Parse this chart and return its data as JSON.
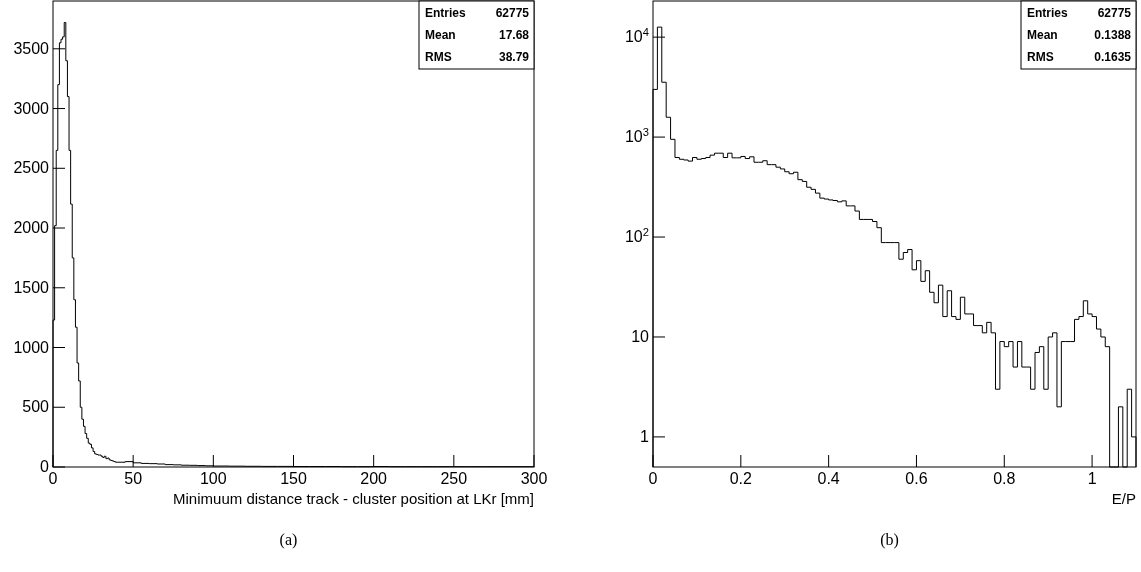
{
  "chart_data": [
    {
      "type": "histogram",
      "xlabel": "Minimuum distance track - cluster position at LKr [mm]",
      "color": "#000000",
      "bins": [
        0,
        1,
        2,
        3,
        4,
        5,
        6,
        7,
        8,
        9,
        10,
        11,
        12,
        13,
        14,
        15,
        16,
        17,
        18,
        19,
        20,
        21,
        22,
        23,
        24,
        25,
        26,
        27,
        28,
        29,
        30,
        31,
        32,
        33,
        34,
        35,
        36,
        37,
        38,
        39,
        40,
        45,
        50,
        55,
        60,
        65,
        70,
        75,
        80,
        85,
        90,
        95,
        100,
        110,
        120,
        130,
        140,
        150,
        160,
        170,
        180,
        190,
        200,
        210,
        220,
        230,
        240,
        250,
        260,
        270,
        280,
        290,
        300
      ],
      "values": [
        1230,
        2020,
        2650,
        3200,
        3550,
        3580,
        3600,
        3720,
        3400,
        3100,
        2650,
        2200,
        1750,
        1400,
        1170,
        870,
        720,
        500,
        400,
        340,
        280,
        240,
        200,
        190,
        160,
        130,
        110,
        105,
        100,
        100,
        90,
        80,
        90,
        70,
        75,
        60,
        55,
        50,
        45,
        40,
        40,
        45,
        35,
        30,
        28,
        25,
        20,
        18,
        15,
        14,
        12,
        10,
        8,
        7,
        6,
        5,
        5,
        4,
        4,
        4,
        3,
        3,
        4,
        3,
        3,
        3,
        3,
        3,
        3,
        3,
        3,
        3
      ],
      "xlim": [
        0,
        300
      ],
      "xticks": [
        0,
        50,
        100,
        150,
        200,
        250,
        300
      ],
      "ylim": [
        0,
        3900
      ],
      "yticks": [
        0,
        500,
        1000,
        1500,
        2000,
        2500,
        3000,
        3500
      ],
      "annotations": [
        "Entries 62775",
        "Mean 17.68",
        "RMS 38.79",
        "(a)"
      ]
    },
    {
      "type": "histogram",
      "xlabel": "E/P",
      "color": "#000000",
      "log": "y",
      "bins": [
        0,
        0.01,
        0.02,
        0.03,
        0.04,
        0.05,
        0.06,
        0.07,
        0.08,
        0.09,
        0.1,
        0.11,
        0.12,
        0.13,
        0.14,
        0.15,
        0.16,
        0.17,
        0.18,
        0.19,
        0.2,
        0.21,
        0.22,
        0.23,
        0.24,
        0.25,
        0.26,
        0.27,
        0.28,
        0.29,
        0.3,
        0.31,
        0.32,
        0.33,
        0.34,
        0.35,
        0.36,
        0.37,
        0.38,
        0.39,
        0.4,
        0.41,
        0.42,
        0.43,
        0.44,
        0.45,
        0.46,
        0.47,
        0.48,
        0.49,
        0.5,
        0.51,
        0.52,
        0.53,
        0.54,
        0.55,
        0.56,
        0.57,
        0.58,
        0.59,
        0.6,
        0.61,
        0.62,
        0.63,
        0.64,
        0.65,
        0.66,
        0.67,
        0.68,
        0.69,
        0.7,
        0.71,
        0.72,
        0.73,
        0.74,
        0.75,
        0.76,
        0.77,
        0.78,
        0.79,
        0.8,
        0.81,
        0.82,
        0.83,
        0.84,
        0.85,
        0.86,
        0.87,
        0.88,
        0.89,
        0.9,
        0.91,
        0.92,
        0.93,
        0.94,
        0.95,
        0.96,
        0.97,
        0.98,
        0.99,
        1,
        1.01,
        1.02,
        1.03,
        1.04,
        1.05,
        1.06,
        1.07,
        1.08,
        1.09,
        1.1
      ],
      "values": [
        3000,
        12600,
        3540,
        1580,
        950,
        625,
        600,
        590,
        575,
        625,
        600,
        610,
        625,
        660,
        690,
        690,
        625,
        690,
        620,
        620,
        640,
        610,
        635,
        560,
        560,
        580,
        530,
        530,
        500,
        480,
        450,
        430,
        445,
        375,
        360,
        315,
        300,
        275,
        245,
        240,
        235,
        232,
        225,
        230,
        205,
        205,
        182,
        150,
        150,
        150,
        143,
        124,
        88,
        88,
        88,
        88,
        60,
        70,
        75,
        47,
        58,
        36,
        46,
        28,
        22,
        33,
        16,
        29,
        16,
        15,
        25,
        17,
        17,
        13,
        13,
        11,
        14,
        11,
        3,
        9,
        8,
        9,
        5,
        9,
        5,
        5,
        3,
        7,
        8,
        3,
        10,
        11,
        2,
        9,
        9,
        9,
        15,
        16,
        23,
        17,
        16,
        12,
        10,
        8,
        null,
        null,
        2,
        null,
        3,
        1
      ],
      "xlim": [
        0,
        1.1
      ],
      "xticks": [
        0,
        0.2,
        0.4,
        0.6,
        0.8,
        1
      ],
      "ylim": [
        0.5,
        23000
      ],
      "yticks": [
        1,
        10,
        {
          "value": 100,
          "label": "10$^{2}$"
        },
        {
          "value": 1000,
          "label": "10$^{3}$"
        },
        {
          "value": 10000,
          "label": "10$^{4}$"
        }
      ],
      "annotations": [
        "Entries 62775",
        "Mean 0.1388",
        "RMS 0.1635",
        "(b)"
      ]
    }
  ]
}
